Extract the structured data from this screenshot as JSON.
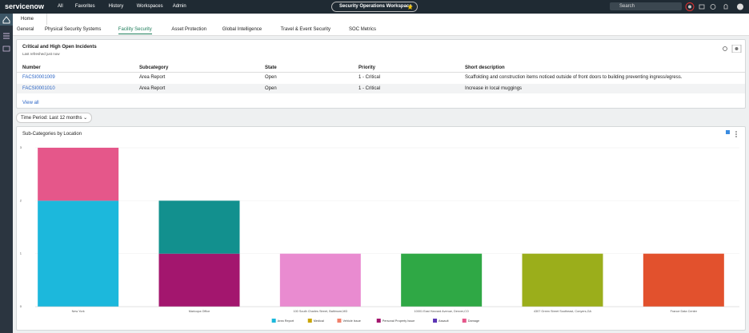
{
  "nav": {
    "logo": "servicenow",
    "menu": [
      "All",
      "Favorites",
      "History",
      "Workspaces",
      "Admin"
    ],
    "workspace": "Security Operations Workspace",
    "search": "Search"
  },
  "tabs": {
    "home": "Home",
    "items": [
      "General",
      "Physical Security Systems",
      "Facility Security",
      "Asset Protection",
      "Global Intelligence",
      "Travel & Event Security",
      "SOC Metrics"
    ],
    "active": 2
  },
  "incidents": {
    "title": "Critical and High Open Incidents",
    "subtitle": "Last refreshed just now",
    "columns": [
      "Number",
      "Subcategory",
      "State",
      "Priority",
      "Short description"
    ],
    "rows": [
      [
        "FACSI0001009",
        "Area Report",
        "Open",
        "1 - Critical",
        "Scaffolding and construction items noticed outside of front doors to building preventing ingress/egress."
      ],
      [
        "FACSI0001010",
        "Area Report",
        "Open",
        "1 - Critical",
        "Increase in local muggings"
      ]
    ],
    "view_all": "View all"
  },
  "filter": "Time Period: Last 12 months",
  "chart_data": {
    "type": "stacked_bar",
    "title": "Sub-Categories by Location",
    "categories": [
      "New York",
      "Maricopa Office",
      "100 South Charles Street, Baltimore,MD",
      "10001 East Harvard Avenue, Denver,CO",
      "4307 Green Street Southeast, Conyers,GA",
      "France Data Center"
    ],
    "series": [
      {
        "name": "Area Report",
        "color": "#1cb8dc",
        "values": [
          2,
          0,
          0,
          0,
          0,
          0
        ]
      },
      {
        "name": "Medical",
        "color": "#c9a400",
        "values": [
          0,
          0,
          0,
          0,
          0,
          0
        ]
      },
      {
        "name": "Vehicle Issue",
        "color": "#f0806a",
        "values": [
          0,
          0,
          0,
          0,
          0,
          0
        ]
      },
      {
        "name": "Personal Property Issue",
        "color": "#a3166e",
        "values": [
          0,
          1,
          0,
          0,
          0,
          0
        ]
      },
      {
        "name": "Assault",
        "color": "#5b35b5",
        "values": [
          0,
          0,
          0,
          0,
          0,
          0
        ]
      },
      {
        "name": "Damage",
        "color": "#e5578a",
        "values": [
          1,
          0,
          0,
          0,
          0,
          0
        ]
      },
      {
        "color": "#12908e",
        "values": [
          0,
          1,
          0,
          0,
          0,
          0
        ]
      },
      {
        "color": "#e98bd0",
        "values": [
          0,
          0,
          1,
          0,
          0,
          0
        ]
      },
      {
        "color": "#2fa845",
        "values": [
          0,
          0,
          0,
          1,
          0,
          0
        ]
      },
      {
        "color": "#9bae1b",
        "values": [
          0,
          0,
          0,
          0,
          1,
          0
        ]
      },
      {
        "color": "#e2512d",
        "values": [
          0,
          0,
          0,
          0,
          0,
          1
        ]
      }
    ],
    "ylim": [
      0,
      3
    ],
    "yticks": [
      0,
      1,
      2,
      3
    ],
    "grid": true
  }
}
